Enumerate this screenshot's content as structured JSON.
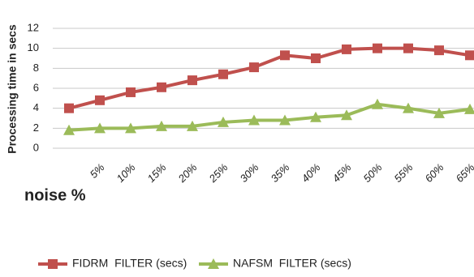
{
  "chart_data": {
    "type": "line",
    "y_label": "Processing time in secs",
    "x_label": "noise %",
    "categories": [
      null,
      "5%",
      "10%",
      "15%",
      "20%",
      "25%",
      "30%",
      "35%",
      "40%",
      "45%",
      "50%",
      "55%",
      "60%",
      "65%"
    ],
    "series": [
      {
        "name": "FIDRM  FILTER (secs)",
        "color": "#c0504d",
        "marker": "square",
        "values": [
          4.0,
          4.8,
          5.6,
          6.1,
          6.8,
          7.4,
          8.1,
          9.3,
          9.0,
          9.9,
          10.0,
          10.0,
          9.8,
          9.3
        ]
      },
      {
        "name": "NAFSM  FILTER (secs)",
        "color": "#9bbb59",
        "marker": "triangle",
        "values": [
          1.8,
          2.0,
          2.0,
          2.2,
          2.2,
          2.6,
          2.8,
          2.8,
          3.1,
          3.3,
          4.4,
          4.0,
          3.5,
          3.9
        ]
      }
    ],
    "ylim": [
      0,
      12
    ],
    "yticks": [
      0,
      2,
      4,
      6,
      8,
      10,
      12
    ],
    "grid": true,
    "legend": "bottom"
  }
}
